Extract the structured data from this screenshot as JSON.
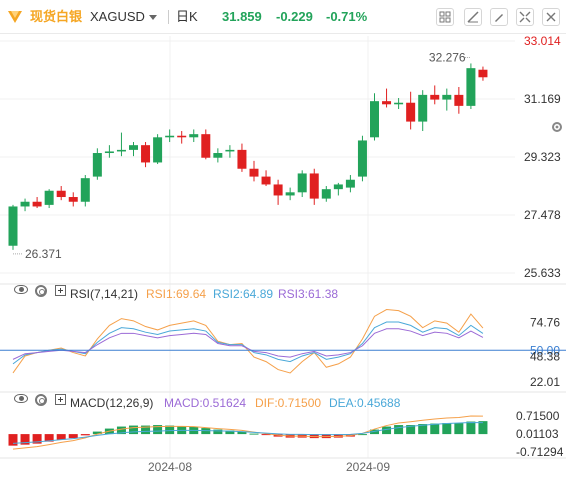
{
  "toolbar": {
    "app_name": "现货白银",
    "symbol": "XAGUSD",
    "period": "日K",
    "price": "31.859",
    "change": "-0.229",
    "change_pct": "-0.71%",
    "colors": {
      "brand": "#f5a623",
      "up": "#22a35a",
      "down": "#e02020",
      "text": "#333333"
    },
    "icons": [
      "grid-icon",
      "draw-line-icon",
      "pencil-icon",
      "indicator-icon",
      "collapse-icon",
      "close-icon"
    ]
  },
  "rsi_header": {
    "label": "RSI(7,14,21)",
    "rsi1": "RSI1:69.64",
    "rsi2": "RSI2:64.89",
    "rsi3": "RSI3:61.38"
  },
  "macd_header": {
    "label": "MACD(12,26,9)",
    "macd": "MACD:0.51624",
    "dif": "DIF:0.71500",
    "dea": "DEA:0.45688"
  },
  "side_tools": [
    "settings-icon"
  ],
  "chart_data": [
    {
      "type": "candlestick",
      "title": "",
      "ylim": [
        25.633,
        33.014
      ],
      "y_ticks": [
        "33.014",
        "31.169",
        "29.323",
        "27.478",
        "25.633"
      ],
      "x_ticks": [
        "2024-08",
        "2024-09"
      ],
      "annotations": {
        "high_label": "32.276",
        "low_label": "26.371"
      },
      "grid": true,
      "ohlc": [
        [
          26.5,
          27.8,
          26.37,
          27.75
        ],
        [
          27.75,
          28.0,
          27.6,
          27.9
        ],
        [
          27.9,
          28.05,
          27.7,
          27.75
        ],
        [
          27.8,
          28.3,
          27.7,
          28.25
        ],
        [
          28.25,
          28.4,
          27.95,
          28.05
        ],
        [
          28.05,
          28.2,
          27.75,
          27.9
        ],
        [
          27.9,
          28.75,
          27.75,
          28.65
        ],
        [
          28.7,
          29.6,
          28.6,
          29.45
        ],
        [
          29.45,
          29.7,
          29.3,
          29.5
        ],
        [
          29.5,
          30.1,
          29.35,
          29.55
        ],
        [
          29.55,
          29.8,
          29.35,
          29.7
        ],
        [
          29.7,
          29.8,
          29.0,
          29.15
        ],
        [
          29.15,
          30.05,
          29.1,
          29.95
        ],
        [
          29.95,
          30.2,
          29.8,
          30.0
        ],
        [
          30.0,
          30.15,
          29.75,
          29.95
        ],
        [
          29.95,
          30.2,
          29.8,
          30.05
        ],
        [
          30.05,
          30.2,
          29.25,
          29.3
        ],
        [
          29.3,
          29.6,
          29.15,
          29.45
        ],
        [
          29.5,
          29.7,
          29.3,
          29.55
        ],
        [
          29.55,
          29.75,
          28.85,
          28.95
        ],
        [
          28.95,
          29.2,
          28.55,
          28.7
        ],
        [
          28.7,
          28.9,
          28.4,
          28.45
        ],
        [
          28.45,
          28.6,
          27.8,
          28.1
        ],
        [
          28.1,
          28.35,
          27.95,
          28.2
        ],
        [
          28.2,
          28.9,
          28.05,
          28.8
        ],
        [
          28.8,
          28.95,
          27.8,
          28.0
        ],
        [
          28.0,
          28.4,
          27.9,
          28.3
        ],
        [
          28.3,
          28.5,
          28.1,
          28.45
        ],
        [
          28.35,
          28.75,
          28.2,
          28.6
        ],
        [
          28.7,
          30.0,
          28.55,
          29.85
        ],
        [
          29.95,
          31.35,
          29.85,
          31.1
        ],
        [
          31.1,
          31.5,
          30.9,
          31.0
        ],
        [
          31.0,
          31.2,
          30.85,
          31.05
        ],
        [
          31.05,
          31.4,
          30.2,
          30.45
        ],
        [
          30.45,
          31.45,
          30.15,
          31.3
        ],
        [
          31.3,
          31.6,
          31.0,
          31.15
        ],
        [
          31.15,
          31.5,
          30.8,
          31.3
        ],
        [
          31.3,
          31.55,
          30.7,
          30.95
        ],
        [
          30.95,
          32.3,
          30.85,
          32.15
        ],
        [
          32.1,
          32.2,
          31.75,
          31.86
        ]
      ]
    },
    {
      "type": "line",
      "title": "RSI(7,14,21)",
      "ylim": [
        22.01,
        90.0
      ],
      "y_ticks": [
        "74.76",
        "50.00",
        "48.38",
        "22.01"
      ],
      "series": [
        {
          "name": "RSI1",
          "color": "#f5a04a",
          "values": [
            30,
            45,
            48,
            50,
            52,
            48,
            45,
            60,
            72,
            78,
            76,
            71,
            68,
            72,
            74,
            76,
            72,
            58,
            55,
            56,
            44,
            40,
            33,
            30,
            40,
            48,
            35,
            38,
            44,
            60,
            80,
            86,
            85,
            80,
            70,
            76,
            74,
            66,
            82,
            69.64
          ]
        },
        {
          "name": "RSI2",
          "color": "#4aa8d8",
          "values": [
            38,
            46,
            48,
            50,
            51,
            49,
            47,
            57,
            65,
            70,
            69,
            66,
            64,
            67,
            68,
            69,
            67,
            57,
            55,
            55,
            48,
            46,
            42,
            40,
            45,
            48,
            42,
            44,
            47,
            56,
            70,
            75,
            75,
            72,
            66,
            70,
            69,
            63,
            72,
            64.89
          ]
        },
        {
          "name": "RSI3",
          "color": "#9b6ad6",
          "values": [
            42,
            47,
            48,
            49,
            50,
            49,
            48,
            55,
            61,
            65,
            65,
            63,
            61,
            63,
            64,
            65,
            64,
            56,
            54,
            54,
            49,
            48,
            45,
            44,
            47,
            49,
            45,
            46,
            48,
            54,
            65,
            69,
            69,
            67,
            63,
            66,
            65,
            61,
            67,
            61.38
          ]
        }
      ],
      "reference_line": 50.0
    },
    {
      "type": "bar+line",
      "title": "MACD(12,26,9)",
      "ylim": [
        -0.7129,
        0.88
      ],
      "y_ticks": [
        "0.71500",
        "0.01103",
        "-0.71294"
      ],
      "series": [
        {
          "name": "MACD",
          "type": "bar",
          "values": [
            -0.46,
            -0.42,
            -0.38,
            -0.3,
            -0.22,
            -0.16,
            -0.05,
            0.1,
            0.22,
            0.3,
            0.34,
            0.34,
            0.36,
            0.34,
            0.32,
            0.3,
            0.24,
            0.18,
            0.14,
            0.1,
            0.02,
            -0.04,
            -0.1,
            -0.14,
            -0.14,
            -0.16,
            -0.16,
            -0.14,
            -0.1,
            0.0,
            0.18,
            0.3,
            0.36,
            0.36,
            0.4,
            0.42,
            0.44,
            0.44,
            0.5,
            0.51624
          ]
        },
        {
          "name": "DIF",
          "color": "#f5a04a",
          "values": [
            -0.6,
            -0.55,
            -0.5,
            -0.42,
            -0.33,
            -0.26,
            -0.15,
            0.0,
            0.12,
            0.2,
            0.26,
            0.28,
            0.3,
            0.31,
            0.31,
            0.3,
            0.26,
            0.22,
            0.19,
            0.15,
            0.08,
            0.02,
            -0.04,
            -0.08,
            -0.08,
            -0.1,
            -0.1,
            -0.09,
            -0.06,
            0.03,
            0.2,
            0.34,
            0.44,
            0.49,
            0.55,
            0.6,
            0.64,
            0.66,
            0.72,
            0.715
          ]
        },
        {
          "name": "DEA",
          "color": "#4aa8d8",
          "values": [
            -0.37,
            -0.34,
            -0.31,
            -0.27,
            -0.22,
            -0.18,
            -0.12,
            -0.05,
            0.01,
            0.05,
            0.09,
            0.11,
            0.12,
            0.14,
            0.15,
            0.15,
            0.14,
            0.13,
            0.12,
            0.1,
            0.07,
            0.04,
            0.01,
            -0.01,
            -0.01,
            -0.02,
            -0.02,
            -0.02,
            -0.01,
            0.03,
            0.11,
            0.19,
            0.26,
            0.31,
            0.35,
            0.39,
            0.42,
            0.44,
            0.46,
            0.45688
          ]
        }
      ]
    }
  ]
}
